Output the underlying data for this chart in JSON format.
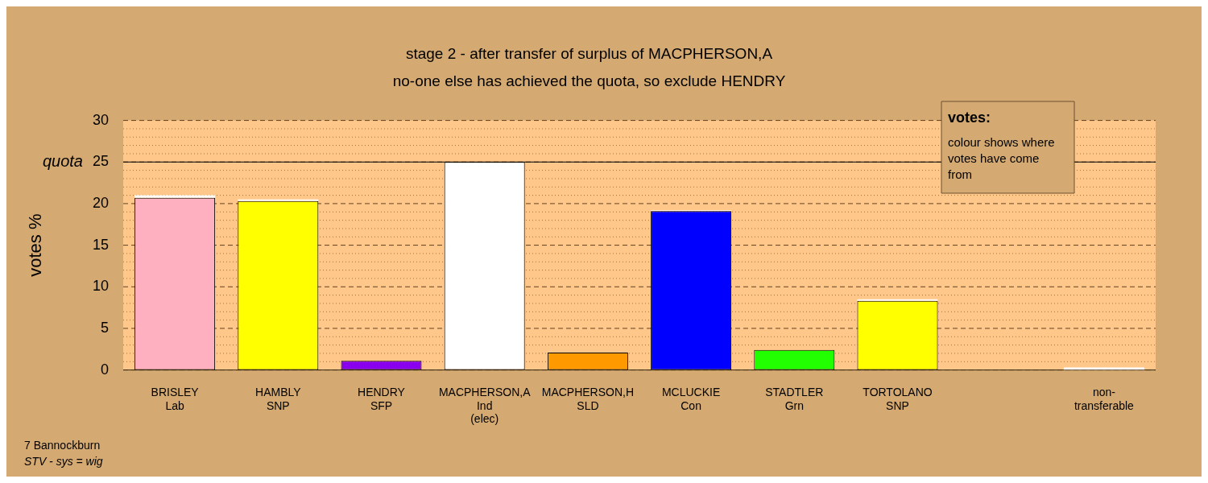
{
  "chart_data": {
    "type": "bar",
    "title": "stage 2 - after transfer of surplus of MACPHERSON,A",
    "subtitle": "no-one else has achieved the quota, so exclude HENDRY",
    "ylabel": "votes %",
    "categories": [
      "BRISLEY\nLab",
      "HAMBLY\nSNP",
      "HENDRY\nSFP",
      "MACPHERSON,A\nInd\n(elec)",
      "MACPHERSON,H\nSLD",
      "MCLUCKIE\nCon",
      "STADTLER\nGrn",
      "TORTOLANO\nSNP",
      null,
      "non-\ntransferable"
    ],
    "stacked": true,
    "series": [
      {
        "colors": [
          "#ffb0c0",
          "#ffff00",
          "#8800ee",
          "#ffffff",
          "#ff9900",
          "#0000ff",
          "#22ff00",
          "#ffff00",
          "#ffffff",
          "#ffffff"
        ],
        "values": [
          20.7,
          20.3,
          1.1,
          25,
          2.1,
          19.1,
          2.4,
          8.3,
          null,
          null
        ]
      },
      {
        "color": "#ffffff",
        "values": [
          0.3,
          0.2,
          null,
          null,
          null,
          0.1,
          null,
          0.2,
          null,
          0.3
        ]
      }
    ],
    "ylim": [
      0,
      30
    ],
    "yticks": [
      0,
      {
        "value": 1,
        "label": null
      },
      {
        "value": 2,
        "label": null
      },
      {
        "value": 3,
        "label": null
      },
      {
        "value": 4,
        "label": null
      },
      5,
      {
        "value": 6,
        "label": null
      },
      {
        "value": 7,
        "label": null
      },
      {
        "value": 8,
        "label": null
      },
      {
        "value": 9,
        "label": null
      },
      10,
      {
        "value": 11,
        "label": null
      },
      {
        "value": 12,
        "label": null
      },
      {
        "value": 13,
        "label": null
      },
      {
        "value": 14,
        "label": null
      },
      15,
      {
        "value": 16,
        "label": null
      },
      {
        "value": 17,
        "label": null
      },
      {
        "value": 18,
        "label": null
      },
      {
        "value": 19,
        "label": null
      },
      20,
      {
        "value": 21,
        "label": null
      },
      {
        "value": 22,
        "label": null
      },
      {
        "value": 23,
        "label": null
      },
      {
        "value": 24,
        "label": null
      },
      25,
      {
        "value": 26,
        "label": null
      },
      {
        "value": 27,
        "label": null
      },
      {
        "value": 28,
        "label": null
      },
      {
        "value": 29,
        "label": null
      },
      30
    ],
    "grid": true,
    "legend": false,
    "ref_lines": [
      {
        "axis": "y",
        "value": 25,
        "label": "quota",
        "color": "#000000"
      }
    ],
    "annotations": [
      "votes:",
      "colour shows where votes have come from",
      "7 Bannockburn",
      "STV - sys = wig"
    ]
  }
}
